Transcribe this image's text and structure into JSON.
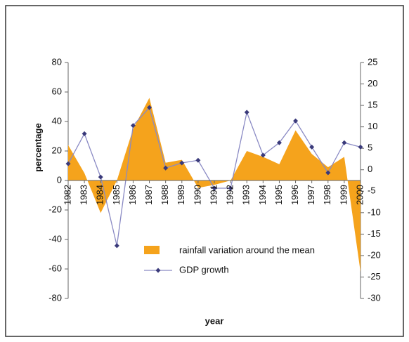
{
  "chart_data": {
    "type": "area-line",
    "xlabel": "year",
    "ylabel": "percentage",
    "categories": [
      "1982",
      "1983",
      "1984",
      "1985",
      "1986",
      "1987",
      "1988",
      "1989",
      "1990",
      "1991",
      "1992",
      "1993",
      "1994",
      "1995",
      "1996",
      "1997",
      "1998",
      "1999",
      "2000"
    ],
    "series": [
      {
        "name": "rainfall variation around the mean",
        "color": "#f5a31c",
        "axis": "y",
        "values": [
          24,
          5,
          -22,
          0,
          35,
          56,
          12,
          14,
          -5,
          -3,
          0,
          20,
          16,
          11,
          34,
          18,
          9,
          16,
          -62
        ]
      },
      {
        "name": "GDP growth",
        "color": "#8a8ac4",
        "axis": "y2",
        "values": [
          1.4,
          8.4,
          -1.7,
          -17.7,
          10.3,
          14.5,
          0.4,
          1.6,
          2.2,
          -4.3,
          -4.3,
          13.4,
          3.4,
          6.3,
          11.4,
          5.3,
          -0.7,
          6.3,
          5.3
        ]
      }
    ],
    "ylim": [
      -80,
      80
    ],
    "yticks": [
      -80,
      -60,
      -40,
      -20,
      0,
      20,
      40,
      60,
      80
    ],
    "y2lim": [
      -30,
      25
    ],
    "y2ticks": [
      -30,
      -25,
      -20,
      -15,
      -10,
      -5,
      0,
      5,
      10,
      15,
      20,
      25
    ]
  }
}
